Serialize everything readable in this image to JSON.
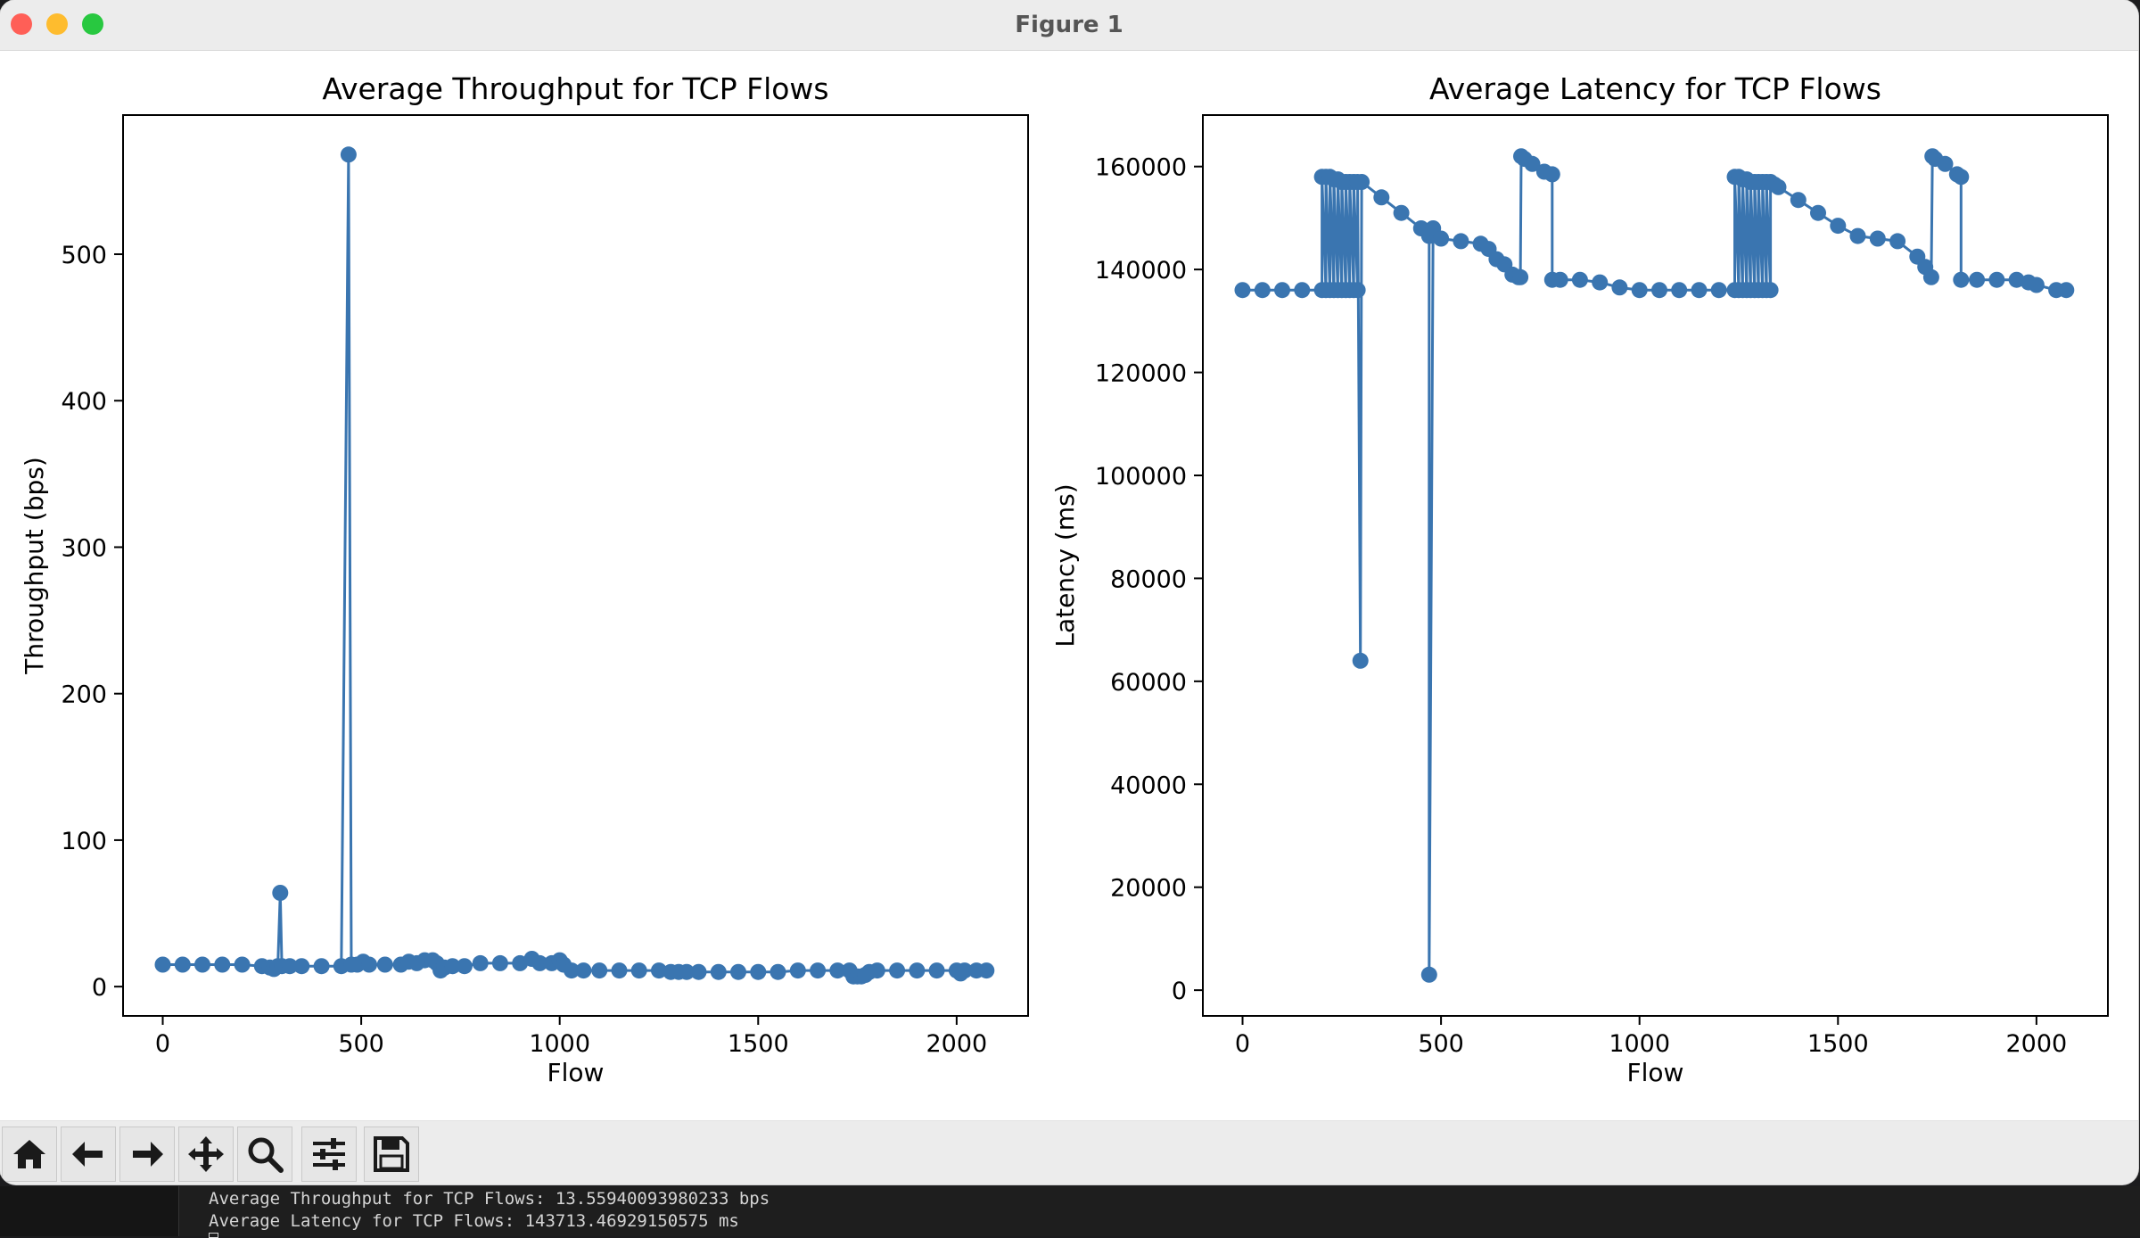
{
  "window": {
    "title": "Figure 1",
    "traffic_colors": {
      "close": "#ff5f57",
      "minimize": "#febc2e",
      "zoom": "#28c840"
    }
  },
  "toolbar": {
    "buttons": [
      {
        "name": "home-button",
        "icon": "home-icon"
      },
      {
        "name": "back-button",
        "icon": "arrow-left-icon"
      },
      {
        "name": "forward-button",
        "icon": "arrow-right-icon"
      },
      {
        "name": "pan-button",
        "icon": "move-icon"
      },
      {
        "name": "zoom-button",
        "icon": "magnifier-icon"
      },
      {
        "name": "configure-subplots-button",
        "icon": "sliders-icon"
      },
      {
        "name": "save-button",
        "icon": "floppy-disk-icon"
      }
    ]
  },
  "terminal": {
    "line1": "Average Throughput for TCP Flows: 13.55940093980233 bps",
    "line2": "Average Latency for TCP Flows: 143713.46929150575 ms"
  },
  "chart_data": [
    {
      "type": "line",
      "title": "Average Throughput for TCP Flows",
      "xlabel": "Flow",
      "ylabel": "Throughput (bps)",
      "xlim": [
        -100,
        2180
      ],
      "ylim": [
        -20,
        595
      ],
      "xticks": [
        0,
        500,
        1000,
        1500,
        2000
      ],
      "yticks": [
        0,
        100,
        200,
        300,
        400,
        500
      ],
      "color": "#3a75b0",
      "marker": "o",
      "grid": false,
      "series": [
        {
          "x": [
            0,
            50,
            100,
            150,
            200,
            250,
            270,
            280,
            290,
            296,
            300,
            320,
            350,
            400,
            450,
            468,
            475,
            490,
            505,
            520,
            560,
            600,
            620,
            640,
            660,
            680,
            690,
            700,
            710,
            730,
            760,
            800,
            850,
            900,
            930,
            950,
            980,
            1000,
            1010,
            1030,
            1060,
            1100,
            1150,
            1200,
            1250,
            1280,
            1300,
            1320,
            1350,
            1400,
            1450,
            1500,
            1550,
            1600,
            1650,
            1700,
            1730,
            1740,
            1750,
            1760,
            1770,
            1780,
            1800,
            1850,
            1900,
            1950,
            2000,
            2010,
            2020,
            2050,
            2075
          ],
          "y": [
            15,
            15,
            15,
            15,
            15,
            14,
            13,
            12,
            14,
            64,
            14,
            14,
            14,
            14,
            14,
            568,
            15,
            15,
            17,
            15,
            15,
            15,
            17,
            16,
            18,
            18,
            16,
            11,
            13,
            14,
            14,
            16,
            16,
            16,
            19,
            16,
            16,
            18,
            15,
            11,
            11,
            11,
            11,
            11,
            11,
            10,
            10,
            10,
            10,
            10,
            10,
            10,
            10,
            11,
            11,
            11,
            11,
            7,
            7,
            7,
            8,
            10,
            11,
            11,
            11,
            11,
            11,
            9,
            11,
            11,
            11
          ]
        }
      ]
    },
    {
      "type": "line",
      "title": "Average Latency for TCP Flows",
      "xlabel": "Flow",
      "ylabel": "Latency (ms)",
      "xlim": [
        -100,
        2180
      ],
      "ylim": [
        -5000,
        170000
      ],
      "xticks": [
        0,
        500,
        1000,
        1500,
        2000
      ],
      "yticks": [
        0,
        20000,
        40000,
        60000,
        80000,
        100000,
        120000,
        140000,
        160000
      ],
      "color": "#3a75b0",
      "marker": "o",
      "grid": false,
      "series": [
        {
          "x": [
            0,
            50,
            100,
            150,
            200,
            200,
            210,
            210,
            220,
            220,
            230,
            230,
            240,
            240,
            250,
            250,
            260,
            260,
            270,
            270,
            280,
            280,
            290,
            290,
            297,
            300,
            350,
            400,
            450,
            470,
            470,
            480,
            500,
            550,
            600,
            620,
            640,
            660,
            680,
            695,
            700,
            702,
            710,
            730,
            760,
            780,
            780,
            800,
            850,
            900,
            950,
            1000,
            1050,
            1100,
            1150,
            1200,
            1240,
            1240,
            1250,
            1250,
            1260,
            1260,
            1270,
            1270,
            1280,
            1280,
            1290,
            1290,
            1300,
            1300,
            1310,
            1310,
            1320,
            1320,
            1330,
            1330,
            1340,
            1350,
            1400,
            1450,
            1500,
            1550,
            1600,
            1650,
            1700,
            1720,
            1735,
            1738,
            1745,
            1770,
            1800,
            1810,
            1810,
            1850,
            1900,
            1950,
            1980,
            2000,
            2050,
            2075
          ],
          "y": [
            136000,
            136000,
            136000,
            136000,
            136000,
            158000,
            136000,
            158000,
            136000,
            158000,
            136000,
            157500,
            136000,
            157500,
            136000,
            157000,
            136000,
            157000,
            136000,
            157000,
            136000,
            157000,
            136000,
            157000,
            64000,
            157000,
            154000,
            151000,
            148000,
            146500,
            3000,
            148000,
            146000,
            145500,
            145000,
            144000,
            142000,
            141000,
            139000,
            138500,
            138500,
            162000,
            161500,
            160500,
            159000,
            158500,
            138000,
            138000,
            138000,
            137500,
            136500,
            136000,
            136000,
            136000,
            136000,
            136000,
            136000,
            158000,
            136000,
            158000,
            136000,
            157500,
            136000,
            157500,
            136000,
            157000,
            136000,
            157000,
            136000,
            157000,
            136000,
            157000,
            136000,
            157000,
            136000,
            157000,
            156500,
            156000,
            153500,
            151000,
            148500,
            146500,
            146000,
            145500,
            142500,
            140500,
            138500,
            162000,
            161500,
            160500,
            158500,
            158000,
            138000,
            138000,
            138000,
            138000,
            137500,
            137000,
            136000,
            136000
          ]
        }
      ]
    }
  ]
}
